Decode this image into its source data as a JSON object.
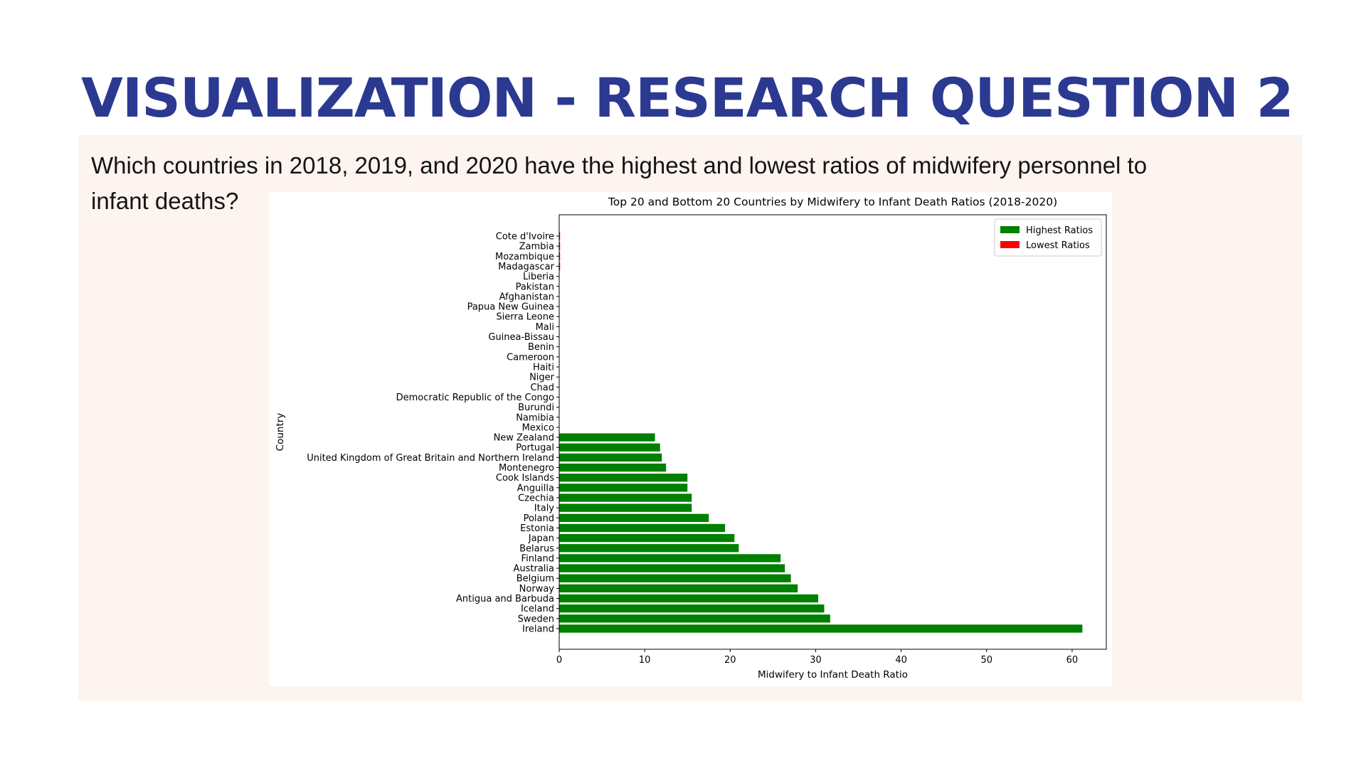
{
  "slide": {
    "title": "Visualization - Research Question 2",
    "question": "Which countries in 2018, 2019, and 2020 have the highest and lowest ratios of midwifery personnel to infant deaths?"
  },
  "colors": {
    "title": "#2b3990",
    "highest": "#008000",
    "lowest": "#ff0000",
    "box_bg": "#fdf3ef"
  },
  "chart_data": {
    "type": "bar",
    "orientation": "horizontal",
    "title": "Top 20 and Bottom 20 Countries by Midwifery to Infant Death Ratios (2018-2020)",
    "xlabel": "Midwifery to Infant Death Ratio",
    "ylabel": "Country",
    "xlim": [
      0,
      64
    ],
    "xticks": [
      0,
      10,
      20,
      30,
      40,
      50,
      60
    ],
    "grid": false,
    "legend_position": "top-right",
    "categories": [
      "Ireland",
      "Sweden",
      "Iceland",
      "Antigua and Barbuda",
      "Norway",
      "Belgium",
      "Australia",
      "Finland",
      "Belarus",
      "Japan",
      "Estonia",
      "Poland",
      "Italy",
      "Czechia",
      "Anguilla",
      "Cook Islands",
      "Montenegro",
      "United Kingdom of Great Britain and Northern Ireland",
      "Portugal",
      "New Zealand",
      "Mexico",
      "Namibia",
      "Burundi",
      "Democratic Republic of the Congo",
      "Chad",
      "Niger",
      "Haiti",
      "Cameroon",
      "Benin",
      "Guinea-Bissau",
      "Mali",
      "Sierra Leone",
      "Papua New Guinea",
      "Afghanistan",
      "Pakistan",
      "Liberia",
      "Madagascar",
      "Mozambique",
      "Zambia",
      "Cote d'Ivoire"
    ],
    "series": [
      {
        "name": "Highest Ratios",
        "color": "#008000",
        "values": [
          61.2,
          31.7,
          31.0,
          30.3,
          27.9,
          27.1,
          26.4,
          25.9,
          21.0,
          20.5,
          19.4,
          17.5,
          15.5,
          15.5,
          15.0,
          15.0,
          12.5,
          12.0,
          11.8,
          11.2,
          null,
          null,
          null,
          null,
          null,
          null,
          null,
          null,
          null,
          null,
          null,
          null,
          null,
          null,
          null,
          null,
          null,
          null,
          null,
          null
        ]
      },
      {
        "name": "Lowest Ratios",
        "color": "#ff0000",
        "values": [
          null,
          null,
          null,
          null,
          null,
          null,
          null,
          null,
          null,
          null,
          null,
          null,
          null,
          null,
          null,
          null,
          null,
          null,
          null,
          null,
          0.0,
          0.0,
          0.0,
          0.0,
          0.0,
          0.0,
          0.0,
          0.0,
          0.0,
          0.0,
          0.0,
          0.0,
          0.0,
          0.0,
          0.0,
          0.0,
          0.1,
          0.1,
          0.1,
          0.1
        ]
      }
    ]
  }
}
